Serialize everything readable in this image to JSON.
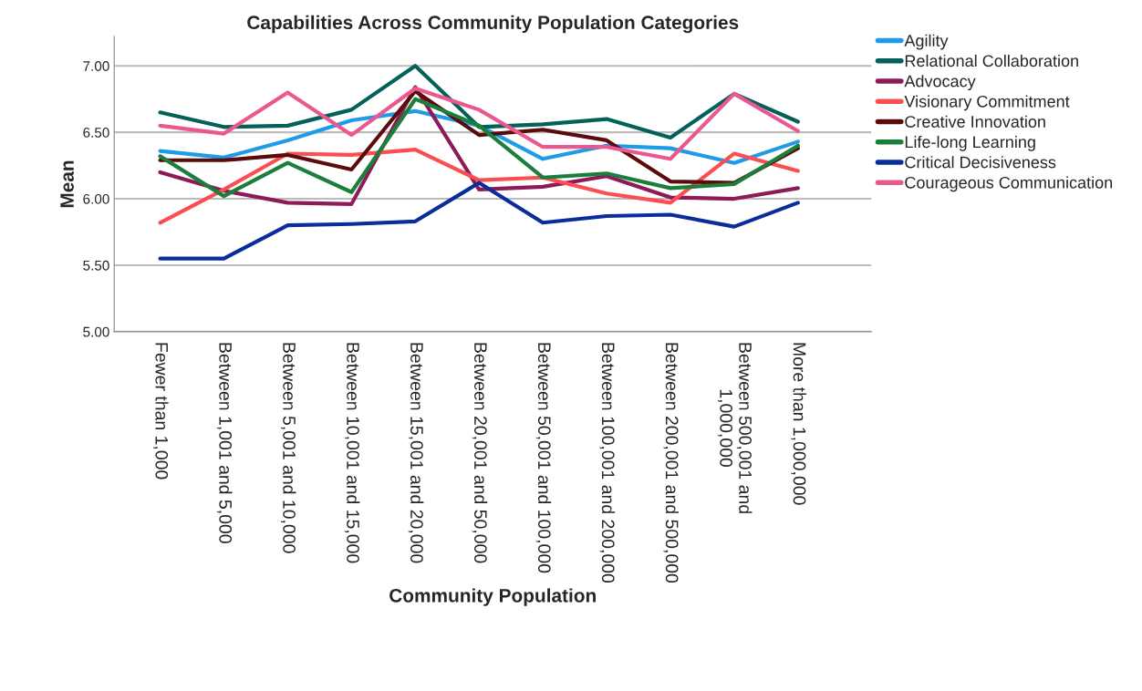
{
  "chart_data": {
    "type": "line",
    "title": "Capabilities Across Community Population Categories",
    "xlabel": "Community Population",
    "ylabel": "Mean",
    "categories": [
      "Fewer than 1,000",
      "Between 1,001 and 5,000",
      "Between 5,001 and 10,000",
      "Between 10,001 and 15,000",
      "Between 15,001 and 20,000",
      "Between 20,001 and 50,000",
      "Between 50,001 and 100,000",
      "Between 100,001 and 200,000",
      "Between 200,001 and 500,000",
      "Between 500,001 and\n1,000,000",
      "More than 1,000,000"
    ],
    "series": [
      {
        "name": "Agility",
        "color": "#1f9be8",
        "values": [
          6.36,
          6.31,
          6.44,
          6.59,
          6.66,
          6.55,
          6.3,
          6.4,
          6.38,
          6.27,
          6.43
        ]
      },
      {
        "name": "Relational Collaboration",
        "color": "#04615a",
        "values": [
          6.65,
          6.54,
          6.55,
          6.67,
          7.0,
          6.54,
          6.56,
          6.6,
          6.46,
          6.79,
          6.58
        ]
      },
      {
        "name": "Advocacy",
        "color": "#8e1a58",
        "values": [
          6.2,
          6.06,
          5.97,
          5.96,
          6.84,
          6.07,
          6.09,
          6.17,
          6.01,
          6.0,
          6.08
        ]
      },
      {
        "name": "Visionary Commitment",
        "color": "#fc4e51",
        "values": [
          5.82,
          6.07,
          6.34,
          6.33,
          6.37,
          6.14,
          6.16,
          6.04,
          5.97,
          6.34,
          6.21
        ]
      },
      {
        "name": "Creative Innovation",
        "color": "#5a0c0c",
        "values": [
          6.29,
          6.29,
          6.33,
          6.22,
          6.81,
          6.48,
          6.52,
          6.44,
          6.13,
          6.12,
          6.38
        ]
      },
      {
        "name": "Life-long Learning",
        "color": "#1b7f3b",
        "values": [
          6.32,
          6.02,
          6.27,
          6.05,
          6.75,
          6.55,
          6.16,
          6.19,
          6.08,
          6.11,
          6.4
        ]
      },
      {
        "name": "Critical Decisiveness",
        "color": "#0a2d9c",
        "values": [
          5.55,
          5.55,
          5.8,
          5.81,
          5.83,
          6.12,
          5.82,
          5.87,
          5.88,
          5.79,
          5.97
        ]
      },
      {
        "name": "Courageous Communication",
        "color": "#eb5890",
        "values": [
          6.55,
          6.49,
          6.8,
          6.48,
          6.83,
          6.67,
          6.39,
          6.39,
          6.3,
          6.79,
          6.51
        ]
      }
    ],
    "ylim": [
      5.0,
      7.22
    ],
    "yticks": [
      {
        "value": 5.0,
        "label": "5.00"
      },
      {
        "value": 5.5,
        "label": "5.50"
      },
      {
        "value": 6.0,
        "label": "6.00"
      },
      {
        "value": 6.5,
        "label": "6.50"
      },
      {
        "value": 7.0,
        "label": "7.00"
      }
    ],
    "grid": "y",
    "legend": "top right",
    "marker": "none",
    "line_style": "solid"
  }
}
